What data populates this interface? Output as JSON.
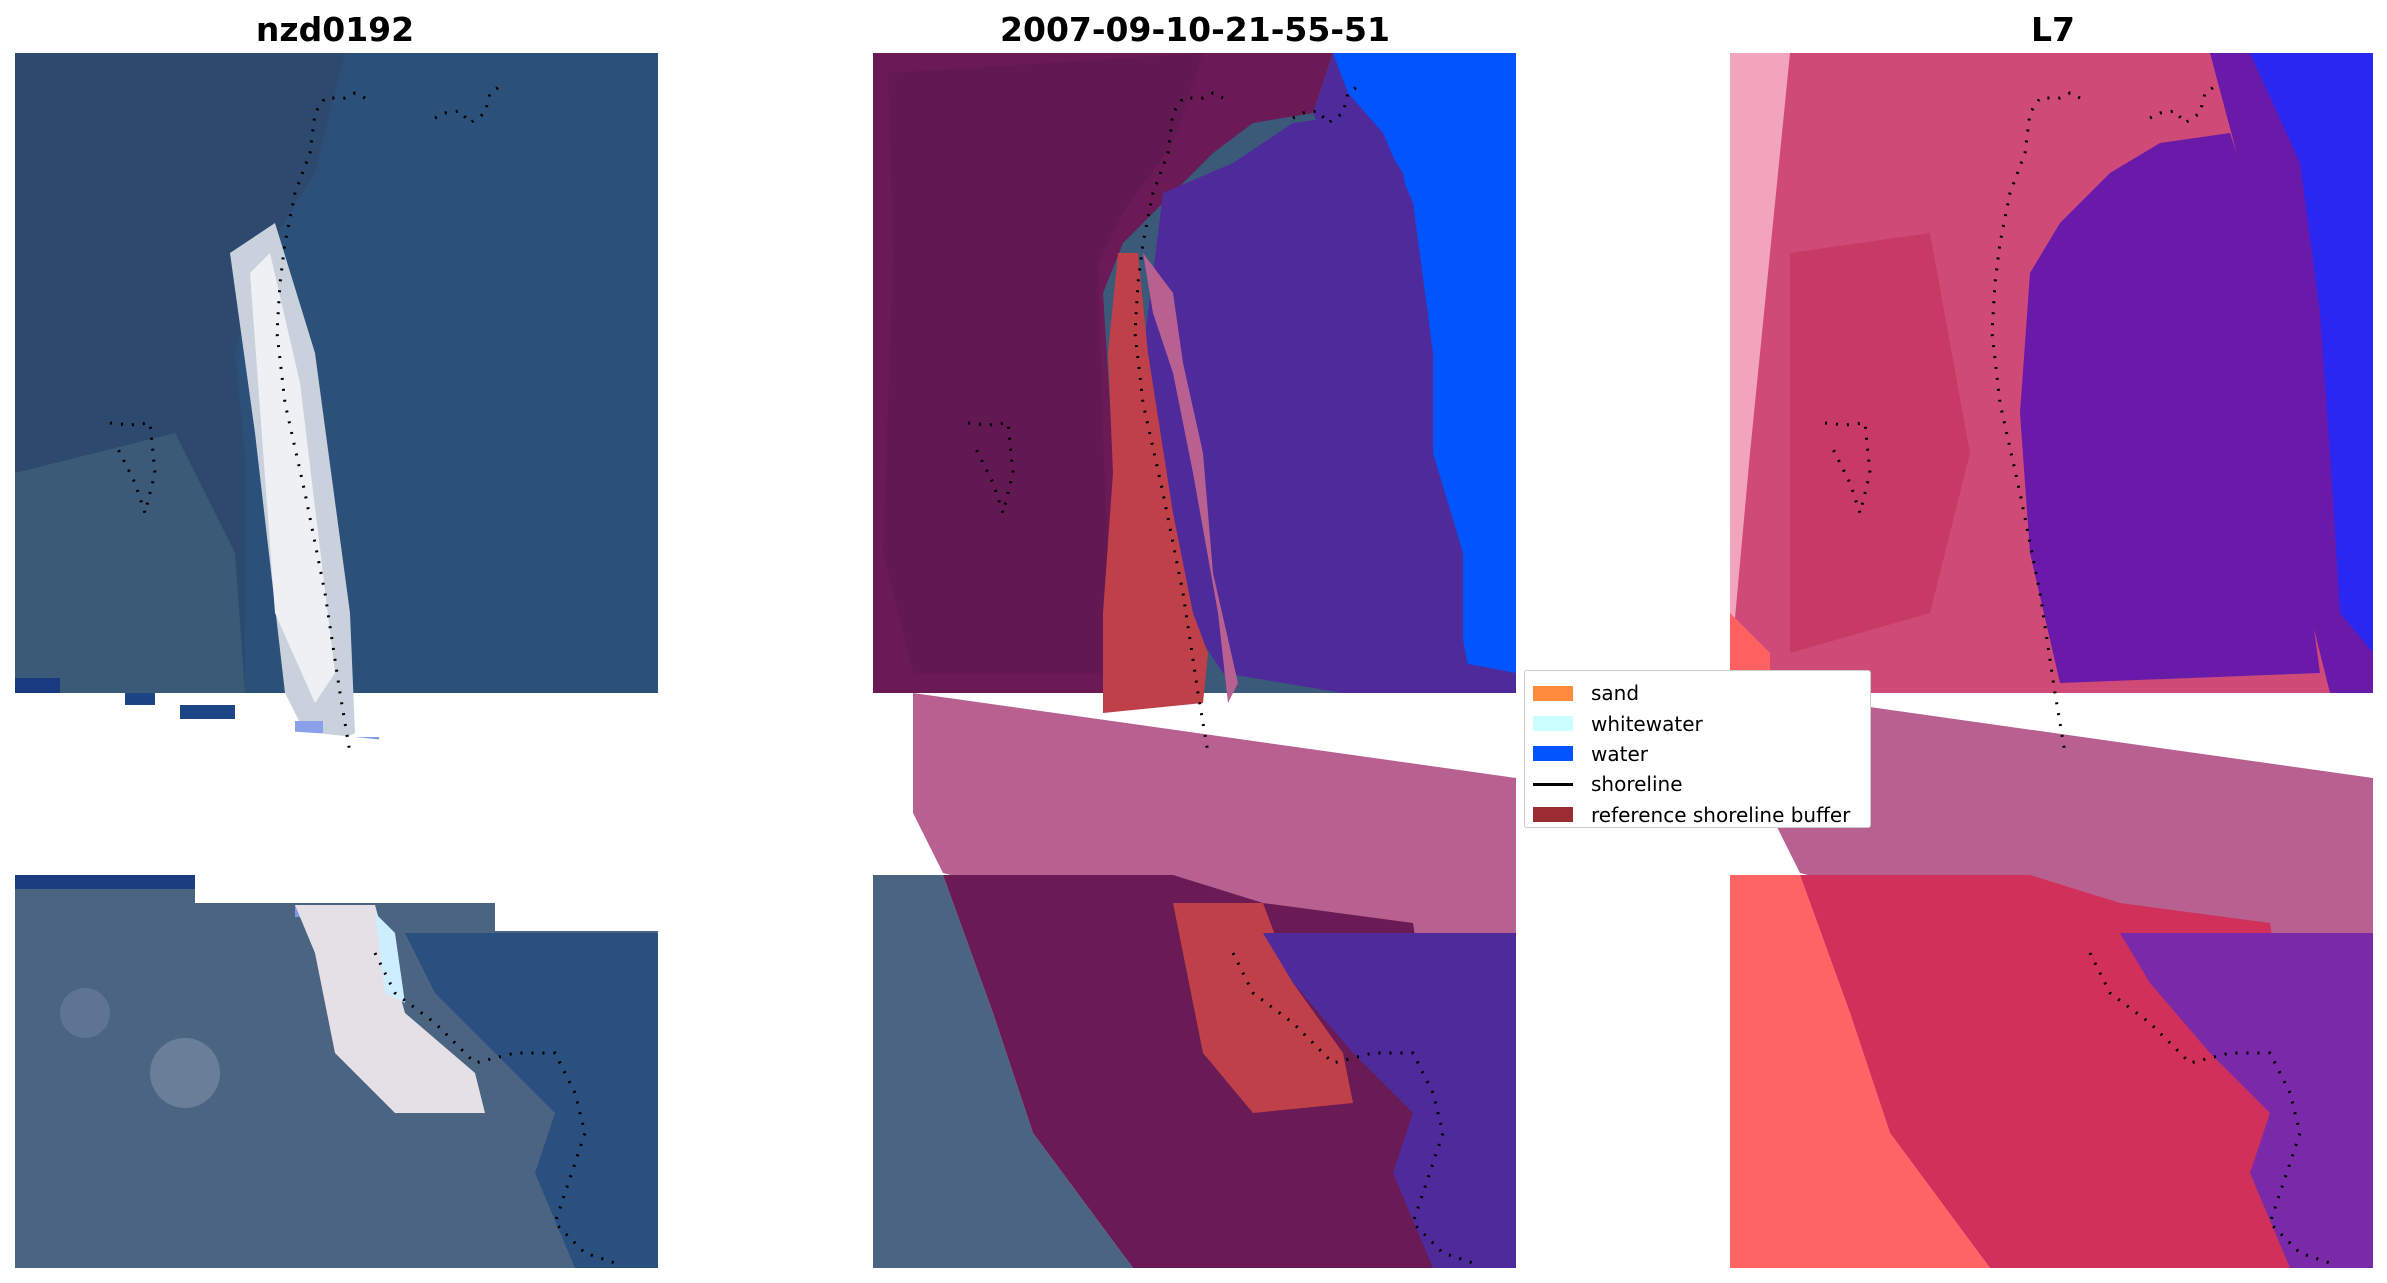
{
  "titles": {
    "left": "nzd0192",
    "center": "2007-09-10-21-55-51",
    "right": "L7"
  },
  "legend": {
    "items": [
      {
        "label": "sand",
        "color": "#ff8c3c",
        "kind": "patch"
      },
      {
        "label": "whitewater",
        "color": "#ccffff",
        "kind": "patch"
      },
      {
        "label": "water",
        "color": "#0055ff",
        "kind": "patch"
      },
      {
        "label": "shoreline",
        "color": "#000000",
        "kind": "line"
      },
      {
        "label": "reference shoreline buffer",
        "color": "#9b2c33",
        "kind": "patch"
      }
    ]
  },
  "colors": {
    "sea_rgb": "#2a5581",
    "land_rgb": "#3c5a7a",
    "sand_rgb": "#e8e8ee",
    "buffer_overlay": "#b8608f",
    "classified_land": "#6a1a55",
    "classified_water": "#4e2a9a",
    "classified_sand": "#c0404a",
    "ocean_class": "#0055ff",
    "index_land": "#d04a78",
    "index_water": "#6a1aa8",
    "index_bright": "#ff6060"
  },
  "icons": {
    "shoreline_marker": "dotted-shoreline-icon"
  }
}
